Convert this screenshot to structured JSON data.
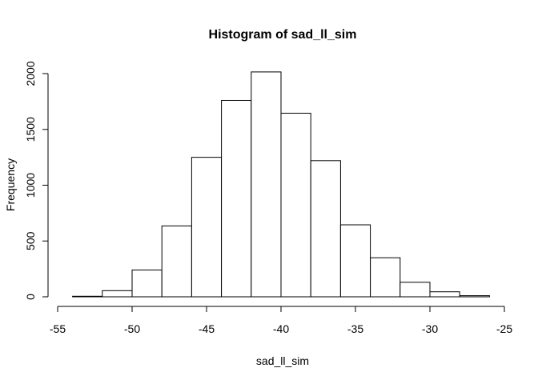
{
  "chart_data": {
    "type": "bar",
    "title": "Histogram of sad_ll_sim",
    "xlabel": "sad_ll_sim",
    "ylabel": "Frequency",
    "bin_edges": [
      -54,
      -52,
      -50,
      -48,
      -46,
      -44,
      -42,
      -40,
      -38,
      -36,
      -34,
      -32,
      -30,
      -28,
      -26
    ],
    "values": [
      5,
      55,
      240,
      635,
      1250,
      1760,
      2015,
      1645,
      1220,
      645,
      350,
      130,
      45,
      10
    ],
    "xlim": [
      -55,
      -25
    ],
    "ylim": [
      0,
      2000
    ],
    "x_ticks": [
      -55,
      -50,
      -45,
      -40,
      -35,
      -30,
      -25
    ],
    "x_tick_labels": [
      "-55",
      "-50",
      "-45",
      "-40",
      "-35",
      "-30",
      "-25"
    ],
    "y_ticks": [
      0,
      500,
      1000,
      1500,
      2000
    ],
    "y_tick_labels": [
      "0",
      "500",
      "1000",
      "1500",
      "2000"
    ],
    "grid": false,
    "bar_fill": "#ffffff",
    "bar_stroke": "#000000"
  }
}
